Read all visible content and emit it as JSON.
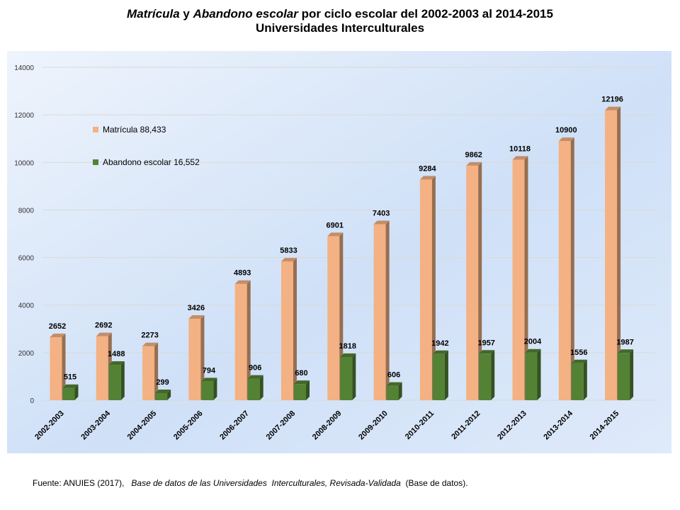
{
  "title": {
    "line1_part1": "Matrícula",
    "line1_part2": " y ",
    "line1_part3": "Abandono escolar",
    "line1_part4": " por ciclo escolar  del 2002-2003 al 2014-2015",
    "line2": "Universidades Interculturales"
  },
  "source": {
    "prefix": "Fuente: ANUIES (2017),   ",
    "italic": "Base de datos de las Universidades  Interculturales, Revisada-Validada",
    "suffix": "  (Base de datos)."
  },
  "chart_data": {
    "type": "bar",
    "categories": [
      "2002-2003",
      "2003-2004",
      "2004-2005",
      "2005-2006",
      "2006-2007",
      "2007-2008",
      "2008-2009",
      "2009-2010",
      "2010-2011",
      "2011-2012",
      "2012-2013",
      "2013-2014",
      "2014-2015"
    ],
    "series": [
      {
        "name": "Matrícula 88,433",
        "color": "#F4B183",
        "values": [
          2652,
          2692,
          2273,
          3426,
          4893,
          5833,
          6901,
          7403,
          9284,
          9862,
          10118,
          10900,
          12196
        ]
      },
      {
        "name": "Abandono escolar  16,552",
        "color": "#548235",
        "values": [
          515,
          1488,
          299,
          794,
          906,
          680,
          1818,
          606,
          1942,
          1957,
          2004,
          1556,
          1987
        ]
      }
    ],
    "ylim": [
      0,
      14000
    ],
    "yticks": [
      0,
      2000,
      4000,
      6000,
      8000,
      10000,
      12000,
      14000
    ],
    "grid": true,
    "legend": "top-left"
  }
}
